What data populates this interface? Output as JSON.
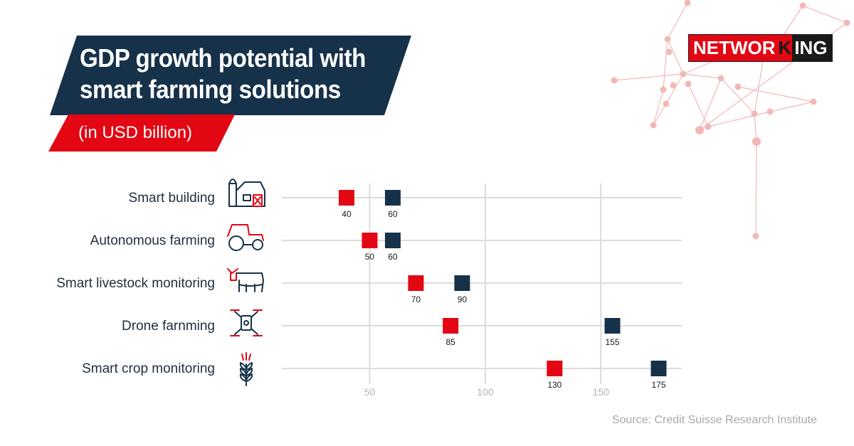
{
  "header": {
    "title_line1": "GDP growth potential with",
    "title_line2": "smart farming solutions",
    "subtitle": "(in USD billion)"
  },
  "logo": {
    "part_a": "NETWOR",
    "part_x": "K",
    "part_b": "ING"
  },
  "source": "Source: Credit Suisse Research Institute",
  "colors": {
    "navy": "#16324a",
    "red": "#e30613",
    "grid": "#dcdcdc",
    "network": "#f2b8b8"
  },
  "chart_data": {
    "type": "dot-range",
    "categories": [
      "Smart building",
      "Autonomous farming",
      "Smart livestock monitoring",
      "Drone farnming",
      "Smart crop monitoring"
    ],
    "icons": [
      "barn-icon",
      "tractor-icon",
      "cow-icon",
      "drone-icon",
      "wheat-icon"
    ],
    "series": [
      {
        "color": "#e30613",
        "values": [
          40,
          50,
          70,
          85,
          130
        ]
      },
      {
        "color": "#16324a",
        "values": [
          60,
          60,
          90,
          155,
          175
        ]
      }
    ],
    "x_ticks": [
      50,
      100,
      150
    ],
    "xlim": [
      12,
      185
    ],
    "grid": true
  }
}
